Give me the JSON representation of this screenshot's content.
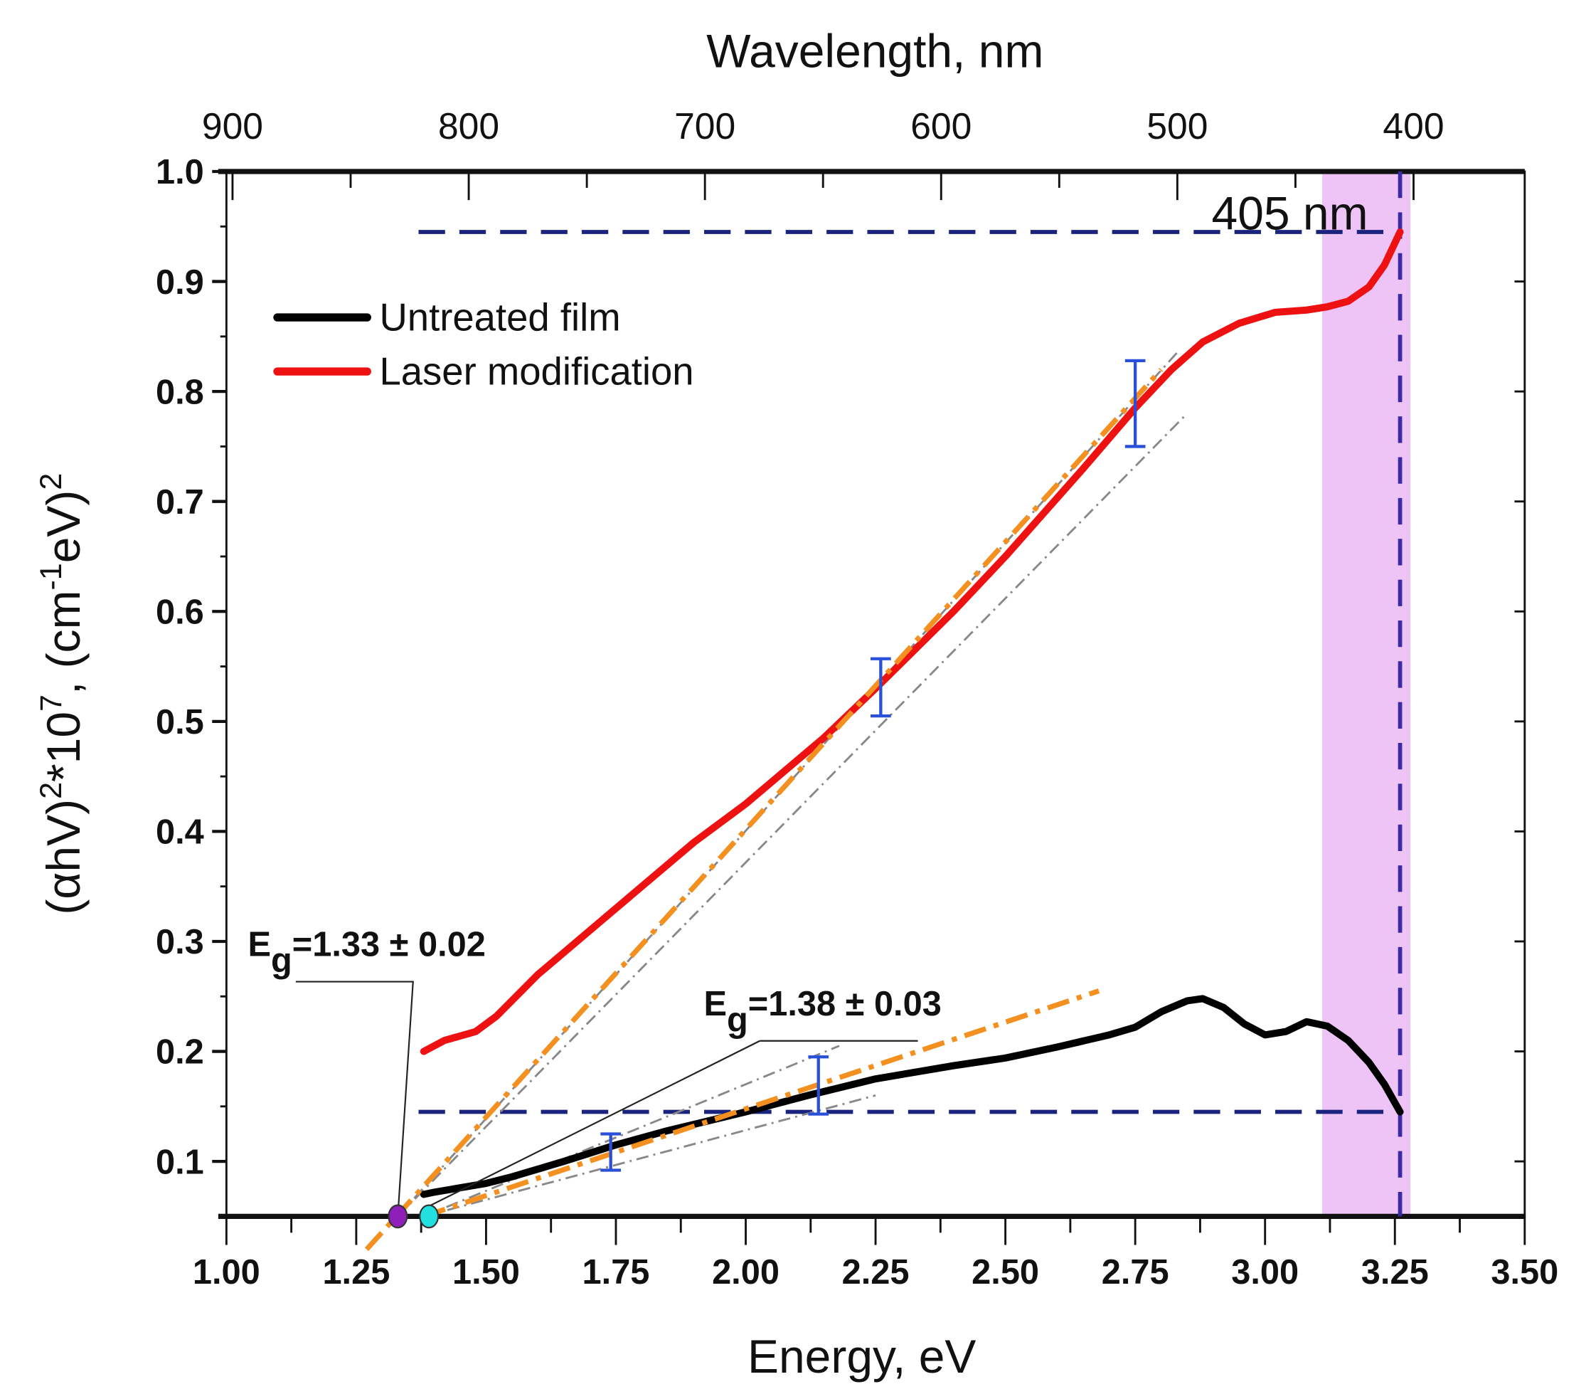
{
  "chart_data": {
    "type": "line",
    "title": "",
    "xlabel": "Energy, eV",
    "x2label": "Wavelength, nm",
    "ylabel_parts": [
      "(αhV)",
      "2",
      "*10",
      "7",
      ", (cm",
      "-1",
      "eV)",
      "2"
    ],
    "xlim": [
      1.0,
      3.5
    ],
    "ylim": [
      0.05,
      1.0
    ],
    "x_ticks": [
      "1.00",
      "1.25",
      "1.50",
      "1.75",
      "2.00",
      "2.25",
      "2.50",
      "2.75",
      "3.00",
      "3.25",
      "3.50"
    ],
    "y_ticks": [
      "0.1",
      "0.2",
      "0.3",
      "0.4",
      "0.5",
      "0.6",
      "0.7",
      "0.8",
      "0.9",
      "1.0"
    ],
    "x2_ticks": [
      "900",
      "800",
      "700",
      "600",
      "500",
      "400"
    ],
    "grid": false,
    "legend_position": "top-left",
    "series": [
      {
        "name": "Untreated film",
        "color": "#000000",
        "x": [
          1.38,
          1.4,
          1.45,
          1.5,
          1.55,
          1.65,
          1.75,
          1.85,
          2.0,
          2.12,
          2.25,
          2.4,
          2.5,
          2.6,
          2.7,
          2.75,
          2.8,
          2.85,
          2.88,
          2.92,
          2.96,
          3.0,
          3.04,
          3.08,
          3.12,
          3.16,
          3.2,
          3.23,
          3.26
        ],
        "y": [
          0.07,
          0.072,
          0.076,
          0.08,
          0.086,
          0.1,
          0.115,
          0.128,
          0.145,
          0.16,
          0.175,
          0.187,
          0.194,
          0.204,
          0.215,
          0.222,
          0.236,
          0.246,
          0.248,
          0.24,
          0.225,
          0.215,
          0.218,
          0.227,
          0.223,
          0.21,
          0.19,
          0.17,
          0.145
        ]
      },
      {
        "name": "Laser modification",
        "color": "#ee1111",
        "x": [
          1.38,
          1.42,
          1.45,
          1.48,
          1.52,
          1.6,
          1.75,
          1.9,
          2.0,
          2.15,
          2.25,
          2.4,
          2.5,
          2.65,
          2.75,
          2.82,
          2.88,
          2.95,
          3.02,
          3.08,
          3.12,
          3.16,
          3.2,
          3.23,
          3.26
        ],
        "y": [
          0.2,
          0.21,
          0.214,
          0.218,
          0.232,
          0.27,
          0.33,
          0.39,
          0.425,
          0.485,
          0.53,
          0.6,
          0.65,
          0.73,
          0.785,
          0.82,
          0.845,
          0.862,
          0.872,
          0.874,
          0.877,
          0.882,
          0.895,
          0.915,
          0.945
        ]
      }
    ],
    "fits": [
      {
        "name": "Laser fit",
        "color": "#f39020",
        "x": [
          1.27,
          2.8
        ],
        "y": [
          0.02,
          0.82
        ]
      },
      {
        "name": "Untreated fit",
        "color": "#f39020",
        "x": [
          1.38,
          2.68
        ],
        "y": [
          0.05,
          0.255
        ]
      }
    ],
    "confidence_lines": [
      {
        "x": [
          1.33,
          2.83
        ],
        "y": [
          0.05,
          0.835
        ]
      },
      {
        "x": [
          1.33,
          2.85
        ],
        "y": [
          0.05,
          0.78
        ]
      },
      {
        "x": [
          1.38,
          2.18
        ],
        "y": [
          0.05,
          0.205
        ]
      },
      {
        "x": [
          1.38,
          2.25
        ],
        "y": [
          0.05,
          0.16
        ]
      }
    ],
    "error_bars": [
      {
        "x": 2.75,
        "low": 0.75,
        "high": 0.828
      },
      {
        "x": 2.26,
        "low": 0.505,
        "high": 0.557
      },
      {
        "x": 2.14,
        "low": 0.143,
        "high": 0.195
      },
      {
        "x": 1.74,
        "low": 0.092,
        "high": 0.125
      }
    ],
    "band": {
      "x": [
        3.11,
        3.28
      ],
      "color": "#eec4f7"
    },
    "reference_lines": {
      "vertical_x": 3.26,
      "horizontal": [
        {
          "y": 0.945,
          "x": [
            1.37,
            3.26
          ]
        },
        {
          "y": 0.145,
          "x": [
            1.37,
            3.26
          ]
        }
      ],
      "color": "#1a237e",
      "label": "405 nm"
    },
    "markers": [
      {
        "x": 1.33,
        "y": 0.05,
        "color": "#8e1fb8"
      },
      {
        "x": 1.39,
        "y": 0.05,
        "color": "#22e0e0"
      }
    ],
    "annotations": [
      {
        "prefix": "E",
        "sub": "g",
        "text": "=1.33 ± 0.02",
        "x": 1.33
      },
      {
        "prefix": "E",
        "sub": "g",
        "text": "=1.38 ± 0.03",
        "x": 1.39
      }
    ]
  }
}
